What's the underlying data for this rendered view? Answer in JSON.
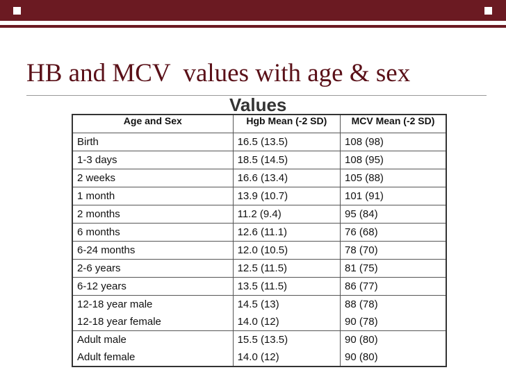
{
  "slide": {
    "title": "HB and MCV  values with age & sex",
    "background_text": "Values"
  },
  "table": {
    "headers": [
      "Age and Sex",
      "Hgb Mean (-2 SD)",
      "MCV Mean (-2 SD)"
    ],
    "groups": [
      [
        [
          "Birth",
          "16.5 (13.5)",
          "108 (98)"
        ]
      ],
      [
        [
          "1-3 days",
          "18.5 (14.5)",
          "108 (95)"
        ]
      ],
      [
        [
          "2 weeks",
          "16.6 (13.4)",
          "105 (88)"
        ]
      ],
      [
        [
          "1 month",
          "13.9 (10.7)",
          "101 (91)"
        ]
      ],
      [
        [
          "2 months",
          "11.2 (9.4)",
          "95 (84)"
        ]
      ],
      [
        [
          "6 months",
          "12.6 (11.1)",
          "76 (68)"
        ]
      ],
      [
        [
          "6-24 months",
          "12.0 (10.5)",
          "78 (70)"
        ]
      ],
      [
        [
          "2-6 years",
          "12.5 (11.5)",
          "81 (75)"
        ]
      ],
      [
        [
          "6-12 years",
          "13.5 (11.5)",
          "86 (77)"
        ]
      ],
      [
        [
          "12-18 year male",
          "14.5 (13)",
          "88 (78)"
        ],
        [
          "12-18 year female",
          "14.0 (12)",
          "90 (78)"
        ]
      ],
      [
        [
          "Adult male",
          "15.5 (13.5)",
          "90 (80)"
        ],
        [
          "Adult female",
          "14.0 (12)",
          "90 (80)"
        ]
      ]
    ]
  }
}
